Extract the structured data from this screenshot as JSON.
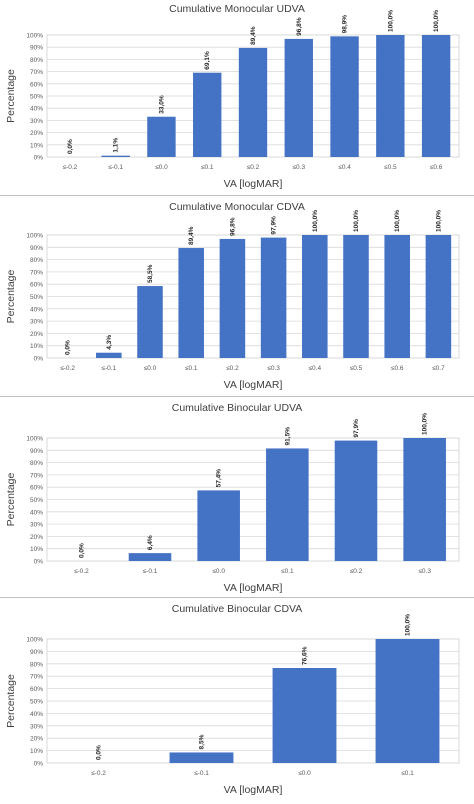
{
  "chart_data": [
    {
      "type": "bar",
      "title": "Cumulative Monocular UDVA",
      "xlabel": "VA [logMAR]",
      "ylabel": "Percentage",
      "categories": [
        "≤-0.2",
        "≤-0.1",
        "≤0.0",
        "≤0.1",
        "≤0.2",
        "≤0.3",
        "≤0.4",
        "≤0.5",
        "≤0.6"
      ],
      "values": [
        0.0,
        1.1,
        33.0,
        69.1,
        89.4,
        96.8,
        98.9,
        100.0,
        100.0
      ],
      "value_labels": [
        "0,0%",
        "1,1%",
        "33,0%",
        "69,1%",
        "89,4%",
        "96,8%",
        "98,9%",
        "100,0%",
        "100,0%"
      ],
      "ylim": [
        0,
        100
      ],
      "yticks": [
        "0%",
        "10%",
        "20%",
        "30%",
        "40%",
        "50%",
        "60%",
        "70%",
        "80%",
        "90%",
        "100%"
      ],
      "color": "#4472c4",
      "grid": true
    },
    {
      "type": "bar",
      "title": "Cumulative Monocular CDVA",
      "xlabel": "VA [logMAR]",
      "ylabel": "Percentage",
      "categories": [
        "≤-0.2",
        "≤-0.1",
        "≤0.0",
        "≤0.1",
        "≤0.2",
        "≤0.3",
        "≤0.4",
        "≤0.5",
        "≤0.6",
        "≤0.7"
      ],
      "values": [
        0.0,
        4.3,
        58.5,
        89.4,
        96.8,
        97.9,
        100.0,
        100.0,
        100.0,
        100.0
      ],
      "value_labels": [
        "0,0%",
        "4,3%",
        "58,5%",
        "89,4%",
        "96,8%",
        "97,9%",
        "100,0%",
        "100,0%",
        "100,0%",
        "100,0%"
      ],
      "ylim": [
        0,
        100
      ],
      "yticks": [
        "0%",
        "10%",
        "20%",
        "30%",
        "40%",
        "50%",
        "60%",
        "70%",
        "80%",
        "90%",
        "100%"
      ],
      "color": "#4472c4",
      "grid": true
    },
    {
      "type": "bar",
      "title": "Cumulative Binocular UDVA",
      "xlabel": "VA [logMAR]",
      "ylabel": "Percentage",
      "categories": [
        "≤-0.2",
        "≤-0.1",
        "≤0.0",
        "≤0.1",
        "≤0.2",
        "≤0.3"
      ],
      "values": [
        0.0,
        6.4,
        57.4,
        91.5,
        97.9,
        100.0
      ],
      "value_labels": [
        "0,0%",
        "6,4%",
        "57,4%",
        "91,5%",
        "97,9%",
        "100,0%"
      ],
      "ylim": [
        0,
        100
      ],
      "yticks": [
        "0%",
        "10%",
        "20%",
        "30%",
        "40%",
        "50%",
        "60%",
        "70%",
        "80%",
        "90%",
        "100%"
      ],
      "color": "#4472c4",
      "grid": true
    },
    {
      "type": "bar",
      "title": "Cumulative Binocular CDVA",
      "xlabel": "VA [logMAR]",
      "ylabel": "Percentage",
      "categories": [
        "≤-0.2",
        "≤-0.1",
        "≤0.0",
        "≤0.1"
      ],
      "values": [
        0.0,
        8.5,
        76.6,
        100.0
      ],
      "value_labels": [
        "0,0%",
        "8,5%",
        "76,6%",
        "100,0%"
      ],
      "ylim": [
        0,
        100
      ],
      "yticks": [
        "0%",
        "10%",
        "20%",
        "30%",
        "40%",
        "50%",
        "60%",
        "70%",
        "80%",
        "90%",
        "100%"
      ],
      "color": "#4472c4",
      "grid": true
    }
  ]
}
